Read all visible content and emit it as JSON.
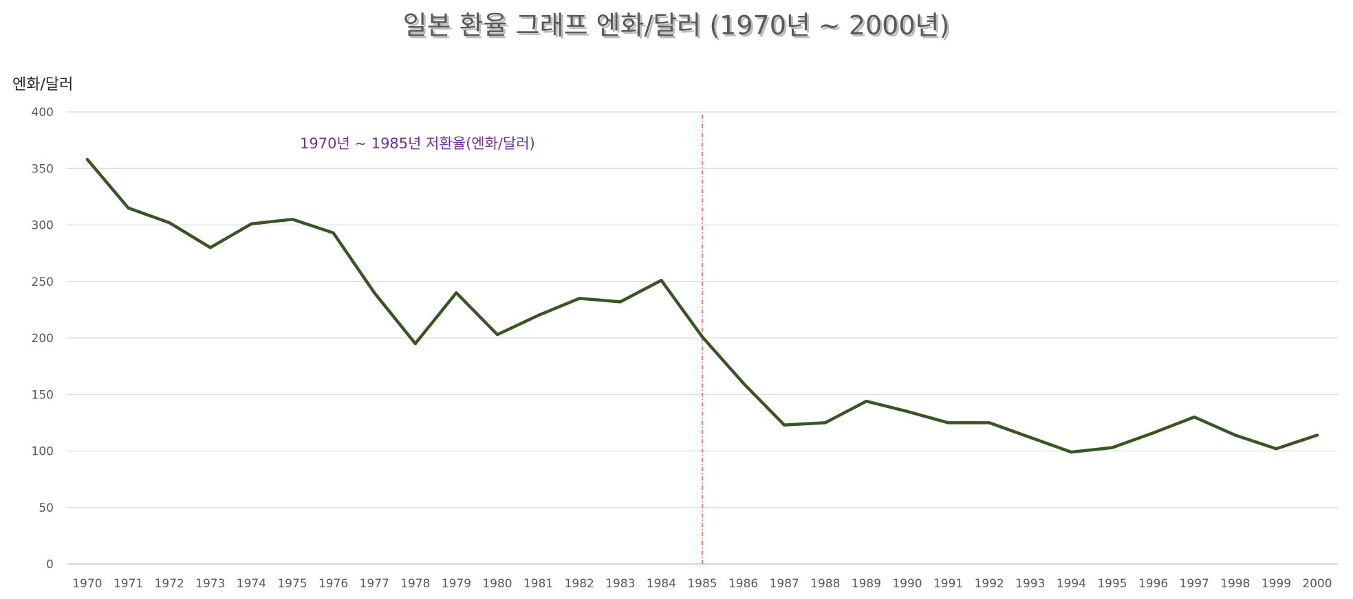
{
  "chart_data": {
    "type": "line",
    "title": "일본 환율 그래프 엔화/달러 (1970년 ~ 2000년)",
    "xlabel": "",
    "ylabel": "엔화/달러",
    "ylim": [
      0,
      400
    ],
    "yticks": [
      "0",
      "50",
      "100",
      "150",
      "200",
      "250",
      "300",
      "350",
      "400"
    ],
    "grid": true,
    "legend": "none",
    "categories": [
      "1970",
      "1971",
      "1972",
      "1973",
      "1974",
      "1975",
      "1976",
      "1977",
      "1978",
      "1979",
      "1980",
      "1981",
      "1982",
      "1983",
      "1984",
      "1985",
      "1986",
      "1987",
      "1988",
      "1989",
      "1990",
      "1991",
      "1992",
      "1993",
      "1994",
      "1995",
      "1996",
      "1997",
      "1998",
      "1999",
      "2000"
    ],
    "series": [
      {
        "color": "#375623",
        "values": [
          358,
          315,
          302,
          280,
          301,
          305,
          293,
          240,
          195,
          240,
          203,
          220,
          235,
          232,
          251,
          201,
          160,
          123,
          125,
          144,
          135,
          125,
          125,
          112,
          99,
          103,
          116,
          130,
          114,
          102,
          114
        ]
      }
    ],
    "annotations": [
      {
        "text": "1970년 ~ 1985년 저환율(엔화/달러)",
        "color": "#7030a0"
      }
    ],
    "reference_line": {
      "x": "1985",
      "color": "#ff4d4d",
      "style": "dash-dot"
    }
  }
}
